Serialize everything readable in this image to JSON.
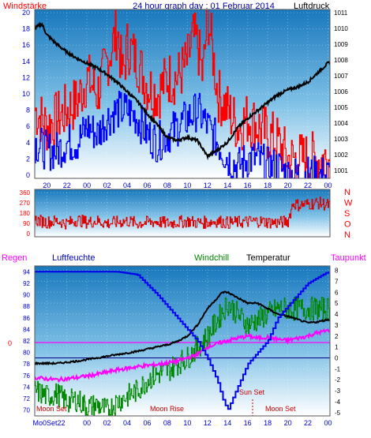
{
  "header": {
    "left_label": "Windstärke",
    "title": "24 hour graph day : 01 Februar 2014",
    "right_label": "Luftdruck"
  },
  "colors": {
    "wind_gust": "#ff0000",
    "wind_avg": "#0000ff",
    "pressure": "#000000",
    "direction": "#dd0000",
    "temperature": "#000000",
    "windchill": "#008800",
    "dewpoint": "#ff00ff",
    "humidity": "#0000ee",
    "rain": "#ff0000",
    "header_text": "#0000aa",
    "panel_top": "#1a7fc0",
    "panel_bottom": "#ffffff"
  },
  "x_tick_labels": [
    "20",
    "22",
    "00",
    "02",
    "04",
    "06",
    "08",
    "10",
    "12",
    "14",
    "16",
    "18",
    "20",
    "22",
    "00"
  ],
  "chart_data": [
    {
      "type": "line",
      "name": "wind-pressure",
      "y_left_ticks": [
        "20",
        "18",
        "16",
        "14",
        "12",
        "10",
        "8",
        "6",
        "4",
        "2",
        "0"
      ],
      "y_right_ticks": [
        "1011",
        "1010",
        "1009",
        "1008",
        "1007",
        "1006",
        "1005",
        "1004",
        "1003",
        "1002",
        "1001"
      ],
      "ylim_left": [
        0,
        20
      ],
      "ylim_right": [
        1000.5,
        1011.2
      ],
      "xlim_hours": [
        -5.2,
        24.2
      ],
      "series": [
        {
          "role": "gust",
          "x": [
            -5.2,
            -4,
            -3,
            -2,
            -1,
            0,
            1,
            2,
            3,
            3.5,
            4,
            5,
            6,
            7,
            8,
            9,
            10,
            10.5,
            11,
            11.5,
            12,
            13,
            14,
            15,
            16,
            17,
            18,
            19,
            20,
            21,
            22,
            23,
            24
          ],
          "values": [
            8,
            6,
            7,
            8,
            9,
            12,
            10,
            14,
            18,
            12,
            16,
            14,
            11,
            10,
            12,
            12,
            14,
            17,
            16,
            12,
            20,
            10,
            8,
            6,
            7,
            6,
            5,
            4,
            2,
            2,
            2,
            2,
            2
          ]
        },
        {
          "role": "average",
          "x": [
            -5.2,
            -4,
            -3,
            -2,
            -1,
            0,
            1,
            2,
            3,
            4,
            5,
            6,
            7,
            8,
            9,
            10,
            11,
            12,
            13,
            14,
            15,
            16,
            17,
            18,
            19,
            20,
            21,
            22,
            23,
            24
          ],
          "values": [
            4,
            3,
            3,
            4,
            4,
            6,
            5,
            7,
            8,
            8,
            7,
            5,
            4,
            5,
            6,
            7,
            8,
            6,
            4,
            2,
            1,
            2,
            2,
            1,
            1,
            0,
            0,
            0,
            0,
            0
          ]
        },
        {
          "role": "pressure",
          "x": [
            -5.2,
            -4.5,
            -4,
            -3,
            -2,
            -1,
            0,
            1,
            2,
            3,
            4,
            5,
            6,
            7,
            8,
            9,
            10,
            11,
            12,
            13,
            14,
            15,
            16,
            17,
            18,
            19,
            20,
            21,
            22,
            23,
            24
          ],
          "values": [
            1010,
            1010.3,
            1009.6,
            1009,
            1008.5,
            1008.1,
            1007.8,
            1007.5,
            1007.1,
            1006.6,
            1006,
            1005.4,
            1004.6,
            1003.9,
            1003.1,
            1002.9,
            1003.1,
            1002.9,
            1001.9,
            1002.3,
            1002.8,
            1003.7,
            1004.3,
            1004.8,
            1005.3,
            1005.8,
            1006.1,
            1006.3,
            1006.6,
            1007.2,
            1007.8
          ]
        }
      ]
    },
    {
      "type": "line",
      "name": "wind-direction",
      "y_left_ticks": [
        "360",
        "270",
        "180",
        "90",
        "0"
      ],
      "y_right_labels": [
        "N",
        "W",
        "S",
        "O",
        "N"
      ],
      "ylim": [
        0,
        360
      ],
      "xlim_hours": [
        -5.2,
        24.2
      ],
      "series": [
        {
          "role": "direction",
          "x": [
            -5.2,
            -4,
            -3,
            -2,
            -1,
            0,
            1,
            2,
            3,
            4,
            5,
            6,
            7,
            8,
            9,
            10,
            11,
            12,
            13,
            14,
            15,
            16,
            17,
            18,
            19,
            20,
            20.5,
            21,
            22,
            23,
            24
          ],
          "values": [
            120,
            100,
            110,
            90,
            120,
            100,
            110,
            90,
            100,
            110,
            90,
            100,
            105,
            90,
            100,
            110,
            95,
            100,
            110,
            95,
            100,
            105,
            110,
            100,
            95,
            110,
            270,
            250,
            260,
            270,
            250
          ]
        }
      ]
    },
    {
      "type": "line",
      "name": "temperature-humidity",
      "legend": [
        "Regen",
        "Luftfeuchte",
        "Windchill",
        "Temperatur",
        "Taupunkt"
      ],
      "y_left_ticks": [
        "94",
        "92",
        "90",
        "88",
        "86",
        "84",
        "82",
        "80",
        "78",
        "76",
        "74",
        "72",
        "70"
      ],
      "y_right_ticks": [
        "8",
        "7",
        "6",
        "5",
        "4",
        "3",
        "2",
        "1",
        "0",
        "-1",
        "-2",
        "-3",
        "-4",
        "-5"
      ],
      "rain_axis_label": "0",
      "ylim_left": [
        69,
        95
      ],
      "ylim_right": [
        -5.3,
        8.4
      ],
      "xlim_hours": [
        -5.2,
        24.2
      ],
      "annotations": [
        "Moon Set",
        "Moon Rise",
        "Sun Set",
        "Moon Set"
      ],
      "x_tick_override_first": "Mo0Set22",
      "series": [
        {
          "role": "humidity",
          "x": [
            -5.2,
            -3,
            -1,
            1,
            3,
            5,
            7,
            8,
            9,
            10,
            11,
            12,
            13,
            13.5,
            14,
            15,
            16,
            17,
            18,
            19,
            20,
            21,
            22,
            23,
            24
          ],
          "values": [
            94,
            94,
            94,
            94,
            94,
            93.5,
            90,
            88,
            86,
            84,
            82,
            79,
            75,
            72,
            70,
            74,
            78,
            80,
            82,
            86,
            88,
            90,
            92,
            93,
            94
          ]
        },
        {
          "role": "temperature",
          "x": [
            -5.2,
            -3,
            -1,
            1,
            3,
            5,
            7,
            8,
            9,
            10,
            11,
            12,
            13,
            13.5,
            14,
            15,
            16,
            17,
            18,
            19,
            20,
            21,
            22,
            23,
            24
          ],
          "values": [
            -0.5,
            -0.5,
            -0.3,
            0,
            0.3,
            0.6,
            1,
            1.2,
            1.5,
            2,
            3,
            4.5,
            5.5,
            6,
            6,
            5.5,
            5,
            5,
            4.5,
            4,
            3.8,
            3.5,
            3.2,
            3.3,
            3.5
          ]
        },
        {
          "role": "windchill",
          "x": [
            -5.2,
            -4,
            -3,
            -2,
            -1,
            0,
            1,
            2,
            3,
            4,
            5,
            6,
            7,
            8,
            9,
            10,
            11,
            12,
            13,
            14,
            15,
            16,
            17,
            18,
            19,
            20
          ],
          "values": [
            -3,
            -3.5,
            -3.3,
            -4,
            -3.8,
            -4.5,
            -4.3,
            -4.8,
            -4,
            -3.5,
            -3,
            -2,
            -1.5,
            -1.2,
            -0.5,
            0,
            1,
            2,
            3.5,
            5,
            4,
            3,
            3.5,
            4,
            4.5,
            4.5
          ]
        },
        {
          "role": "dewpoint",
          "x": [
            -5.2,
            -3,
            -1,
            1,
            3,
            5,
            7,
            9,
            11,
            12,
            14,
            16,
            17,
            18,
            19,
            20,
            21,
            22,
            23,
            24
          ],
          "values": [
            -1.8,
            -2,
            -1.8,
            -1.5,
            -1.1,
            -0.8,
            -0.6,
            -0.3,
            0.3,
            1,
            1.6,
            2,
            1.8,
            1.9,
            1.7,
            1.6,
            1.8,
            2,
            2.3,
            2.5
          ]
        },
        {
          "role": "rain",
          "x": [
            -5.2,
            24.2
          ],
          "values": [
            0,
            0
          ]
        }
      ]
    }
  ]
}
